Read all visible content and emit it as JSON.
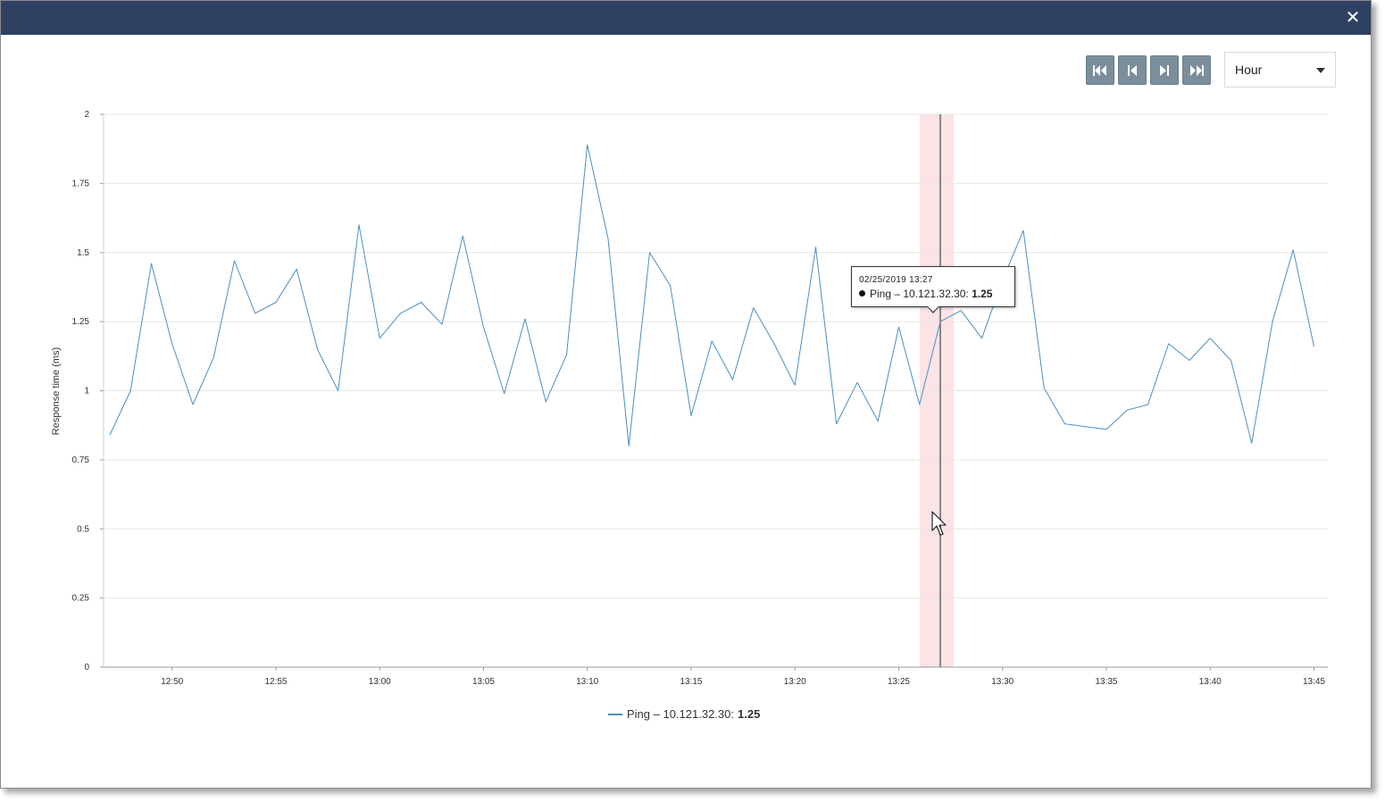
{
  "dialog": {
    "close_glyph": "✕"
  },
  "toolbar": {
    "nav_buttons": [
      {
        "name": "first-page-button",
        "icon": "skip-first-icon"
      },
      {
        "name": "previous-page-button",
        "icon": "step-back-icon"
      },
      {
        "name": "next-page-button",
        "icon": "step-forward-icon"
      },
      {
        "name": "last-page-button",
        "icon": "skip-last-icon"
      }
    ],
    "range_select": {
      "value": "Hour",
      "icon": "caret-down-icon"
    }
  },
  "tooltip": {
    "date": "02/25/2019 13:27",
    "series_label": "Ping – 10.121.32.30:",
    "value": "1.25"
  },
  "legend": {
    "label": "Ping – 10.121.32.30:",
    "value": "1.25"
  },
  "colors": {
    "title_bar": "#2e4163",
    "nav_button": "#7b8e9c",
    "series": "#4a8fc2",
    "highlight_band": "#fbe3e6",
    "crosshair": "#888888",
    "grid": "#e6e6e6"
  },
  "chart_data": {
    "type": "line",
    "ylabel": "Response time (ms)",
    "ylim": [
      0,
      2
    ],
    "y_ticks": [
      "0",
      "0.25",
      "0.5",
      "0.75",
      "1",
      "1.25",
      "1.5",
      "1.75",
      "2"
    ],
    "x_ticks": [
      "12:50",
      "12:55",
      "13:00",
      "13:05",
      "13:10",
      "13:15",
      "13:20",
      "13:25",
      "13:30",
      "13:35",
      "13:40",
      "13:45"
    ],
    "x_unit": "time (HH:MM, 1-minute samples)",
    "highlight_time": "13:27",
    "series": [
      {
        "name": "Ping – 10.121.32.30",
        "x": [
          "12:47",
          "12:48",
          "12:49",
          "12:50",
          "12:51",
          "12:52",
          "12:53",
          "12:54",
          "12:55",
          "12:56",
          "12:57",
          "12:58",
          "12:59",
          "13:00",
          "13:01",
          "13:02",
          "13:03",
          "13:04",
          "13:05",
          "13:06",
          "13:07",
          "13:08",
          "13:09",
          "13:10",
          "13:11",
          "13:12",
          "13:13",
          "13:14",
          "13:15",
          "13:16",
          "13:17",
          "13:18",
          "13:19",
          "13:20",
          "13:21",
          "13:22",
          "13:23",
          "13:24",
          "13:25",
          "13:26",
          "13:27",
          "13:28",
          "13:29",
          "13:30",
          "13:31",
          "13:32",
          "13:33",
          "13:34",
          "13:35",
          "13:36",
          "13:37",
          "13:38",
          "13:39",
          "13:40",
          "13:41",
          "13:42",
          "13:43",
          "13:44",
          "13:45"
        ],
        "values": [
          0.84,
          1.0,
          1.46,
          1.17,
          0.95,
          1.12,
          1.47,
          1.28,
          1.32,
          1.44,
          1.15,
          1.0,
          1.6,
          1.19,
          1.28,
          1.32,
          1.24,
          1.56,
          1.23,
          0.99,
          1.26,
          0.96,
          1.13,
          1.89,
          1.55,
          0.8,
          1.5,
          1.38,
          0.91,
          1.18,
          1.04,
          1.3,
          1.17,
          1.02,
          1.52,
          0.88,
          1.03,
          0.89,
          1.23,
          0.95,
          1.25,
          1.29,
          1.19,
          1.4,
          1.58,
          1.01,
          0.88,
          0.87,
          0.86,
          0.93,
          0.95,
          1.17,
          1.11,
          1.19,
          1.11,
          0.81,
          1.25,
          1.51,
          1.16
        ]
      }
    ]
  }
}
